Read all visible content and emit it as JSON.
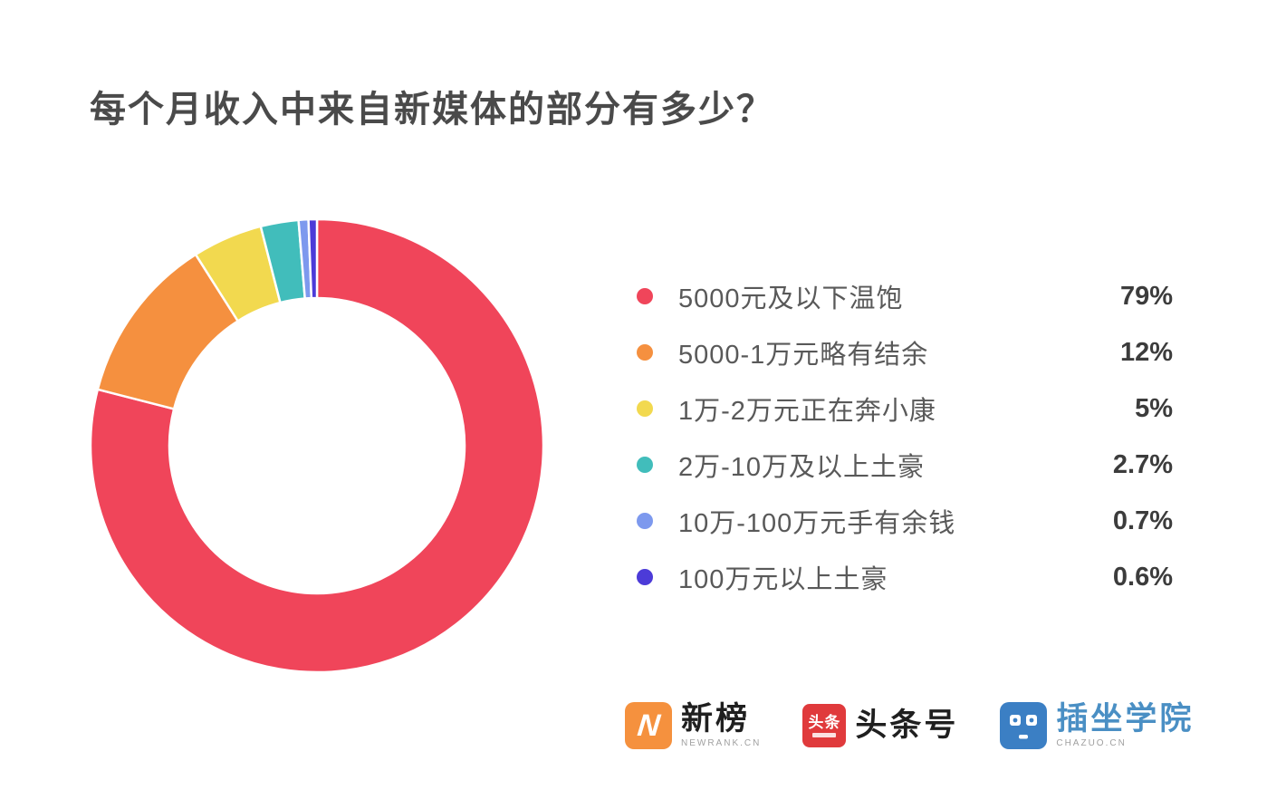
{
  "title": "每个月收入中来自新媒体的部分有多少？",
  "chart_data": {
    "type": "pie",
    "subtype": "donut",
    "title": "每个月收入中来自新媒体的部分有多少？",
    "categories": [
      "5000元及以下温饱",
      "5000-1万元略有结余",
      "1万-2万元正在奔小康",
      "2万-10万及以上土豪",
      "10万-100万元手有余钱",
      "100万元以上土豪"
    ],
    "values": [
      79,
      12,
      5,
      2.7,
      0.7,
      0.6
    ],
    "value_labels": [
      "79%",
      "12%",
      "5%",
      "2.7%",
      "0.7%",
      "0.6%"
    ],
    "colors": [
      "#F0455A",
      "#F5903F",
      "#F2D94F",
      "#41BDBB",
      "#7D99EE",
      "#4C3BD8"
    ],
    "legend_position": "right",
    "start_angle_deg": 0,
    "direction": "clockwise",
    "inner_radius_ratio": 0.65,
    "slice_gap_color": "#ffffff"
  },
  "footer": {
    "logos": [
      {
        "name": "newrank",
        "badge_letter": "N",
        "badge_color": "#F5913E",
        "text": "新榜",
        "subtext": "NEWRANK.CN"
      },
      {
        "name": "toutiao",
        "badge_text": "头条",
        "badge_color": "#E03A3C",
        "text": "头条号"
      },
      {
        "name": "chazuo",
        "badge_color": "#3B7FC4",
        "text": "插坐学院",
        "subtext": "CHAZUO.CN"
      }
    ]
  }
}
